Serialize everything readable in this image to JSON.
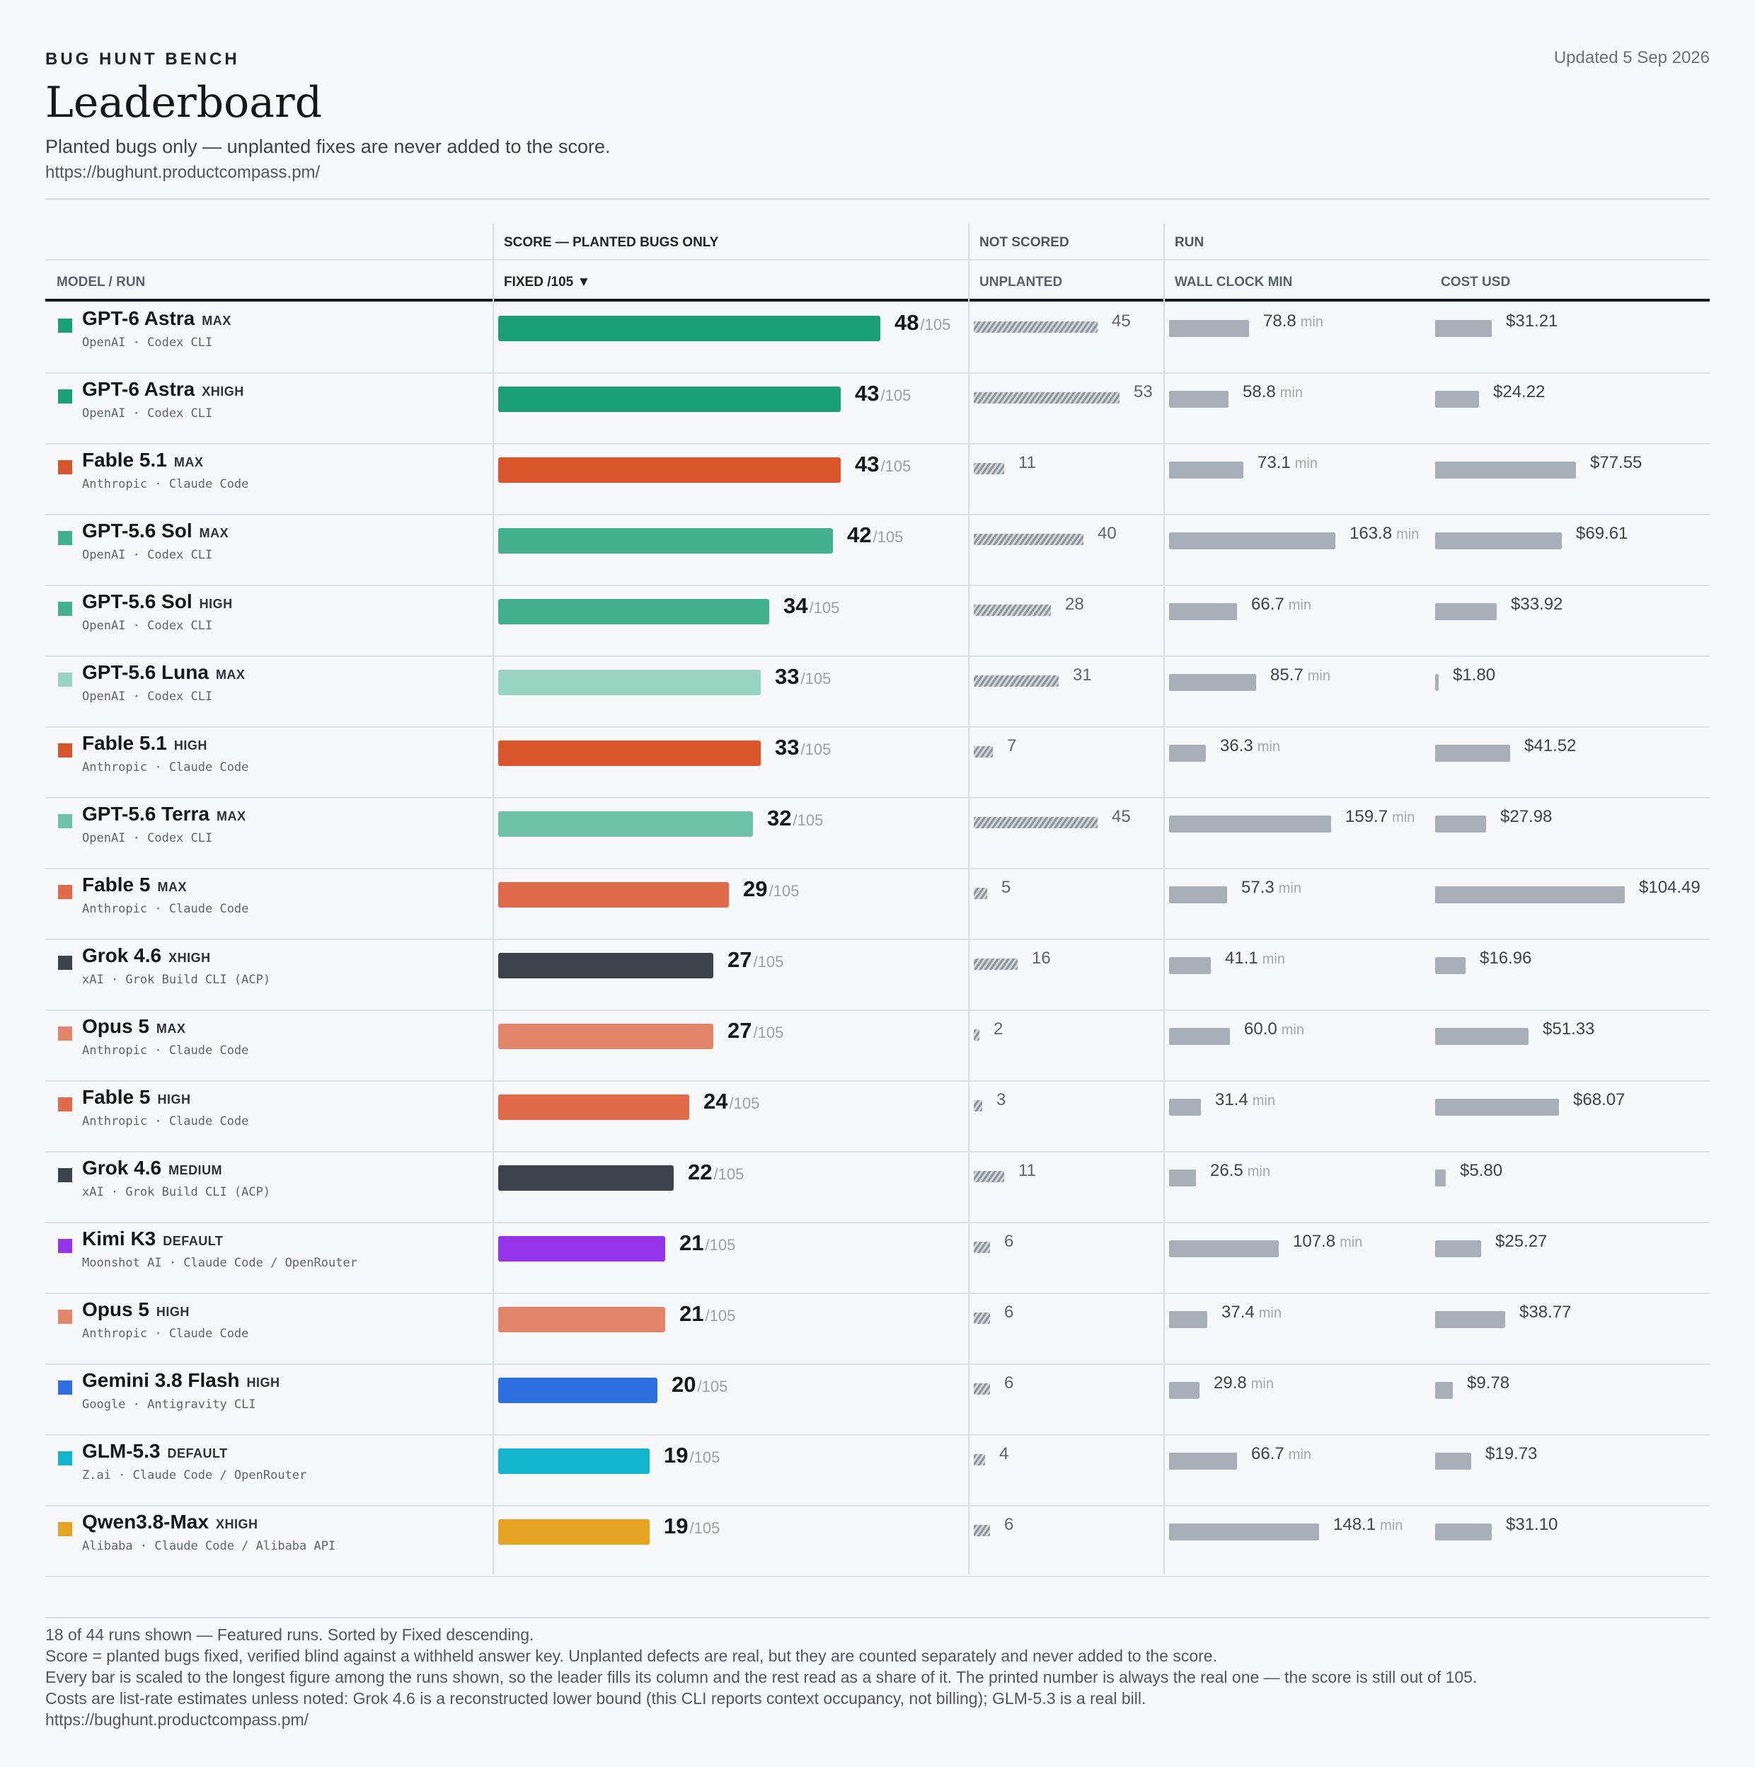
{
  "header": {
    "kicker": "BUG HUNT BENCH",
    "updated": "Updated 5 Sep 2026",
    "title": "Leaderboard",
    "subtitle": "Planted bugs only — unplanted fixes are never added to the score.",
    "url": "https://bughunt.productcompass.pm/"
  },
  "table": {
    "group_score": "SCORE — PLANTED BUGS ONLY",
    "group_not_scored": "NOT SCORED",
    "group_run": "RUN",
    "col_model": "MODEL / RUN",
    "col_fixed": "FIXED /105 ▼",
    "col_unplanted": "UNPLANTED",
    "col_wall": "WALL CLOCK MIN",
    "col_cost": "COST USD"
  },
  "units": {
    "out_of": "/105",
    "min": "min"
  },
  "chart_data": {
    "type": "bar",
    "max_score": 105,
    "series_columns": [
      "fixed",
      "unplanted",
      "wall_clock_min",
      "cost_usd"
    ],
    "rows": [
      {
        "model": "GPT-6 Astra",
        "effort": "MAX",
        "vendor": "OpenAI · Codex CLI",
        "color": "#1a9f77",
        "fixed": 48,
        "unplanted": 45,
        "wall": 78.8,
        "wall_label": "78.8",
        "cost": 31.21,
        "cost_label": "$31.21"
      },
      {
        "model": "GPT-6 Astra",
        "effort": "XHIGH",
        "vendor": "OpenAI · Codex CLI",
        "color": "#1a9f77",
        "fixed": 43,
        "unplanted": 53,
        "wall": 58.8,
        "wall_label": "58.8",
        "cost": 24.22,
        "cost_label": "$24.22"
      },
      {
        "model": "Fable 5.1",
        "effort": "MAX",
        "vendor": "Anthropic · Claude Code",
        "color": "#d9552b",
        "fixed": 43,
        "unplanted": 11,
        "wall": 73.1,
        "wall_label": "73.1",
        "cost": 77.55,
        "cost_label": "$77.55"
      },
      {
        "model": "GPT-5.6 Sol",
        "effort": "MAX",
        "vendor": "OpenAI · Codex CLI",
        "color": "#44b18d",
        "fixed": 42,
        "unplanted": 40,
        "wall": 163.8,
        "wall_label": "163.8",
        "cost": 69.61,
        "cost_label": "$69.61"
      },
      {
        "model": "GPT-5.6 Sol",
        "effort": "HIGH",
        "vendor": "OpenAI · Codex CLI",
        "color": "#44b18d",
        "fixed": 34,
        "unplanted": 28,
        "wall": 66.7,
        "wall_label": "66.7",
        "cost": 33.92,
        "cost_label": "$33.92"
      },
      {
        "model": "GPT-5.6 Luna",
        "effort": "MAX",
        "vendor": "OpenAI · Codex CLI",
        "color": "#97d5c1",
        "fixed": 33,
        "unplanted": 31,
        "wall": 85.7,
        "wall_label": "85.7",
        "cost": 1.8,
        "cost_label": "$1.80"
      },
      {
        "model": "Fable 5.1",
        "effort": "HIGH",
        "vendor": "Anthropic · Claude Code",
        "color": "#d9552b",
        "fixed": 33,
        "unplanted": 7,
        "wall": 36.3,
        "wall_label": "36.3",
        "cost": 41.52,
        "cost_label": "$41.52"
      },
      {
        "model": "GPT-5.6 Terra",
        "effort": "MAX",
        "vendor": "OpenAI · Codex CLI",
        "color": "#6ec2a6",
        "fixed": 32,
        "unplanted": 45,
        "wall": 159.7,
        "wall_label": "159.7",
        "cost": 27.98,
        "cost_label": "$27.98"
      },
      {
        "model": "Fable 5",
        "effort": "MAX",
        "vendor": "Anthropic · Claude Code",
        "color": "#e06b4a",
        "fixed": 29,
        "unplanted": 5,
        "wall": 57.3,
        "wall_label": "57.3",
        "cost": 104.49,
        "cost_label": "$104.49"
      },
      {
        "model": "Grok 4.6",
        "effort": "XHIGH",
        "vendor": "xAI · Grok Build CLI (ACP)",
        "color": "#3c434d",
        "fixed": 27,
        "unplanted": 16,
        "wall": 41.1,
        "wall_label": "41.1",
        "cost": 16.96,
        "cost_label": "$16.96"
      },
      {
        "model": "Opus 5",
        "effort": "MAX",
        "vendor": "Anthropic · Claude Code",
        "color": "#e3856a",
        "fixed": 27,
        "unplanted": 2,
        "wall": 60.0,
        "wall_label": "60.0",
        "cost": 51.33,
        "cost_label": "$51.33"
      },
      {
        "model": "Fable 5",
        "effort": "HIGH",
        "vendor": "Anthropic · Claude Code",
        "color": "#e06b4a",
        "fixed": 24,
        "unplanted": 3,
        "wall": 31.4,
        "wall_label": "31.4",
        "cost": 68.07,
        "cost_label": "$68.07"
      },
      {
        "model": "Grok 4.6",
        "effort": "MEDIUM",
        "vendor": "xAI · Grok Build CLI (ACP)",
        "color": "#3c434d",
        "fixed": 22,
        "unplanted": 11,
        "wall": 26.5,
        "wall_label": "26.5",
        "cost": 5.8,
        "cost_label": "$5.80"
      },
      {
        "model": "Kimi K3",
        "effort": "DEFAULT",
        "vendor": "Moonshot AI · Claude Code / OpenRouter",
        "color": "#9333ea",
        "fixed": 21,
        "unplanted": 6,
        "wall": 107.8,
        "wall_label": "107.8",
        "cost": 25.27,
        "cost_label": "$25.27"
      },
      {
        "model": "Opus 5",
        "effort": "HIGH",
        "vendor": "Anthropic · Claude Code",
        "color": "#e3856a",
        "fixed": 21,
        "unplanted": 6,
        "wall": 37.4,
        "wall_label": "37.4",
        "cost": 38.77,
        "cost_label": "$38.77"
      },
      {
        "model": "Gemini 3.8 Flash",
        "effort": "HIGH",
        "vendor": "Google · Antigravity CLI",
        "color": "#2d6fe0",
        "fixed": 20,
        "unplanted": 6,
        "wall": 29.8,
        "wall_label": "29.8",
        "cost": 9.78,
        "cost_label": "$9.78"
      },
      {
        "model": "GLM-5.3",
        "effort": "DEFAULT",
        "vendor": "Z.ai · Claude Code / OpenRouter",
        "color": "#12b5cb",
        "fixed": 19,
        "unplanted": 4,
        "wall": 66.7,
        "wall_label": "66.7",
        "cost": 19.73,
        "cost_label": "$19.73"
      },
      {
        "model": "Qwen3.8-Max",
        "effort": "XHIGH",
        "vendor": "Alibaba · Claude Code / Alibaba API",
        "color": "#e5a423",
        "fixed": 19,
        "unplanted": 6,
        "wall": 148.1,
        "wall_label": "148.1",
        "cost": 31.1,
        "cost_label": "$31.10"
      }
    ]
  },
  "footer": {
    "line1": "18 of 44 runs shown — Featured runs. Sorted by Fixed descending.",
    "line2": "Score = planted bugs fixed, verified blind against a withheld answer key. Unplanted defects are real, but they are counted separately and never added to the score.",
    "line3": "Every bar is scaled to the longest figure among the runs shown, so the leader fills its column and the rest read as a share of it. The printed number is always the real one — the score is still out of 105.",
    "line4": "Costs are list-rate estimates unless noted: Grok 4.6 is a reconstructed lower bound (this CLI reports context occupancy, not billing); GLM-5.3 is a real bill.",
    "line5": "https://bughunt.productcompass.pm/"
  }
}
